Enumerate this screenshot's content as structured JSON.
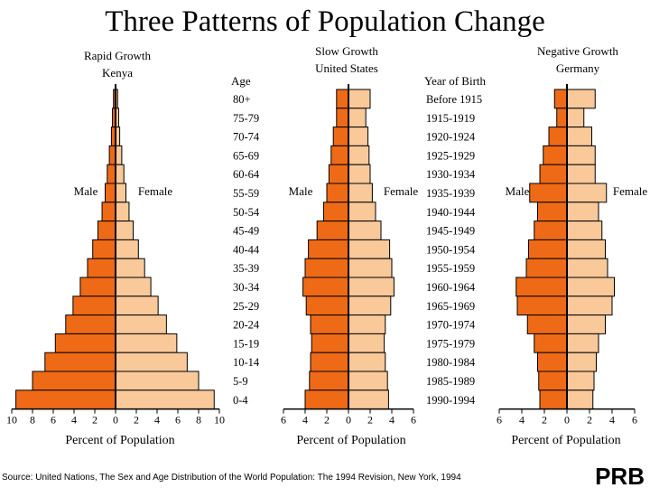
{
  "title": "Three Patterns of Population Change",
  "age_header": "Age",
  "birth_header": "Year of Birth",
  "age_groups": [
    "80+",
    "75-79",
    "70-74",
    "65-69",
    "60-64",
    "55-59",
    "50-54",
    "45-49",
    "40-44",
    "35-39",
    "30-34",
    "25-29",
    "20-24",
    "15-19",
    "10-14",
    "5-9",
    "0-4"
  ],
  "birth_years": [
    "Before 1915",
    "1915-1919",
    "1920-1924",
    "1925-1929",
    "1930-1934",
    "1935-1939",
    "1940-1944",
    "1945-1949",
    "1950-1954",
    "1955-1959",
    "1960-1964",
    "1965-1969",
    "1970-1974",
    "1975-1979",
    "1980-1984",
    "1985-1989",
    "1990-1994"
  ],
  "source": "Source: United Nations, The Sex and Age Distribution of the World Population: The 1994 Revision, New York, 1994",
  "logo": "PRB",
  "colors": {
    "male": "#ef6a16",
    "female": "#f9c99a",
    "outline": "#000000"
  },
  "chart_data": [
    {
      "type": "bar",
      "title": "Rapid Growth",
      "subtitle": "Kenya",
      "xlabel": "Percent of Population",
      "male_label": "Male",
      "female_label": "Female",
      "xlim": [
        -10,
        10
      ],
      "ticks": [
        10,
        8,
        6,
        4,
        2,
        0,
        2,
        4,
        6,
        8,
        10
      ],
      "categories": [
        "80+",
        "75-79",
        "70-74",
        "65-69",
        "60-64",
        "55-59",
        "50-54",
        "45-49",
        "40-44",
        "35-39",
        "30-34",
        "25-29",
        "20-24",
        "15-19",
        "10-14",
        "5-9",
        "0-4"
      ],
      "series": [
        {
          "name": "Male",
          "values": [
            0.2,
            0.3,
            0.4,
            0.6,
            0.8,
            1.0,
            1.3,
            1.7,
            2.2,
            2.7,
            3.4,
            4.1,
            4.8,
            5.8,
            6.8,
            8.0,
            9.6
          ]
        },
        {
          "name": "Female",
          "values": [
            0.2,
            0.3,
            0.4,
            0.6,
            0.8,
            1.0,
            1.3,
            1.7,
            2.2,
            2.8,
            3.4,
            4.1,
            4.9,
            5.9,
            6.9,
            8.0,
            9.5
          ]
        }
      ]
    },
    {
      "type": "bar",
      "title": "Slow Growth",
      "subtitle": "United States",
      "xlabel": "Percent of Population",
      "male_label": "Male",
      "female_label": "Female",
      "xlim": [
        -6,
        6
      ],
      "ticks": [
        6,
        4,
        2,
        0,
        2,
        4,
        6
      ],
      "categories": [
        "80+",
        "75-79",
        "70-74",
        "65-69",
        "60-64",
        "55-59",
        "50-54",
        "45-49",
        "40-44",
        "35-39",
        "30-34",
        "25-29",
        "20-24",
        "15-19",
        "10-14",
        "5-9",
        "0-4"
      ],
      "series": [
        {
          "name": "Male",
          "values": [
            1.1,
            1.1,
            1.4,
            1.6,
            1.8,
            2.0,
            2.3,
            2.9,
            3.7,
            4.0,
            4.2,
            3.9,
            3.5,
            3.4,
            3.5,
            3.6,
            4.0
          ]
        },
        {
          "name": "Female",
          "values": [
            2.0,
            1.6,
            1.8,
            1.9,
            2.0,
            2.2,
            2.5,
            3.0,
            3.8,
            4.0,
            4.2,
            3.9,
            3.4,
            3.3,
            3.4,
            3.6,
            3.7
          ]
        }
      ]
    },
    {
      "type": "bar",
      "title": "Negative Growth",
      "subtitle": "Germany",
      "xlabel": "Percent of Population",
      "male_label": "Male",
      "female_label": "Female",
      "xlim": [
        -6,
        6
      ],
      "ticks": [
        6,
        4,
        2,
        0,
        2,
        4,
        6
      ],
      "categories": [
        "80+",
        "75-79",
        "70-74",
        "65-69",
        "60-64",
        "55-59",
        "50-54",
        "45-49",
        "40-44",
        "35-39",
        "30-34",
        "25-29",
        "20-24",
        "15-19",
        "10-14",
        "5-9",
        "0-4"
      ],
      "series": [
        {
          "name": "Male",
          "values": [
            1.1,
            0.9,
            1.6,
            2.1,
            2.4,
            3.3,
            2.6,
            2.9,
            3.4,
            3.6,
            4.5,
            4.4,
            3.5,
            2.9,
            2.6,
            2.5,
            2.4
          ]
        },
        {
          "name": "Female",
          "values": [
            2.5,
            1.5,
            2.2,
            2.5,
            2.5,
            3.5,
            2.8,
            3.1,
            3.4,
            3.6,
            4.2,
            4.0,
            3.4,
            2.8,
            2.6,
            2.4,
            2.3
          ]
        }
      ]
    }
  ]
}
